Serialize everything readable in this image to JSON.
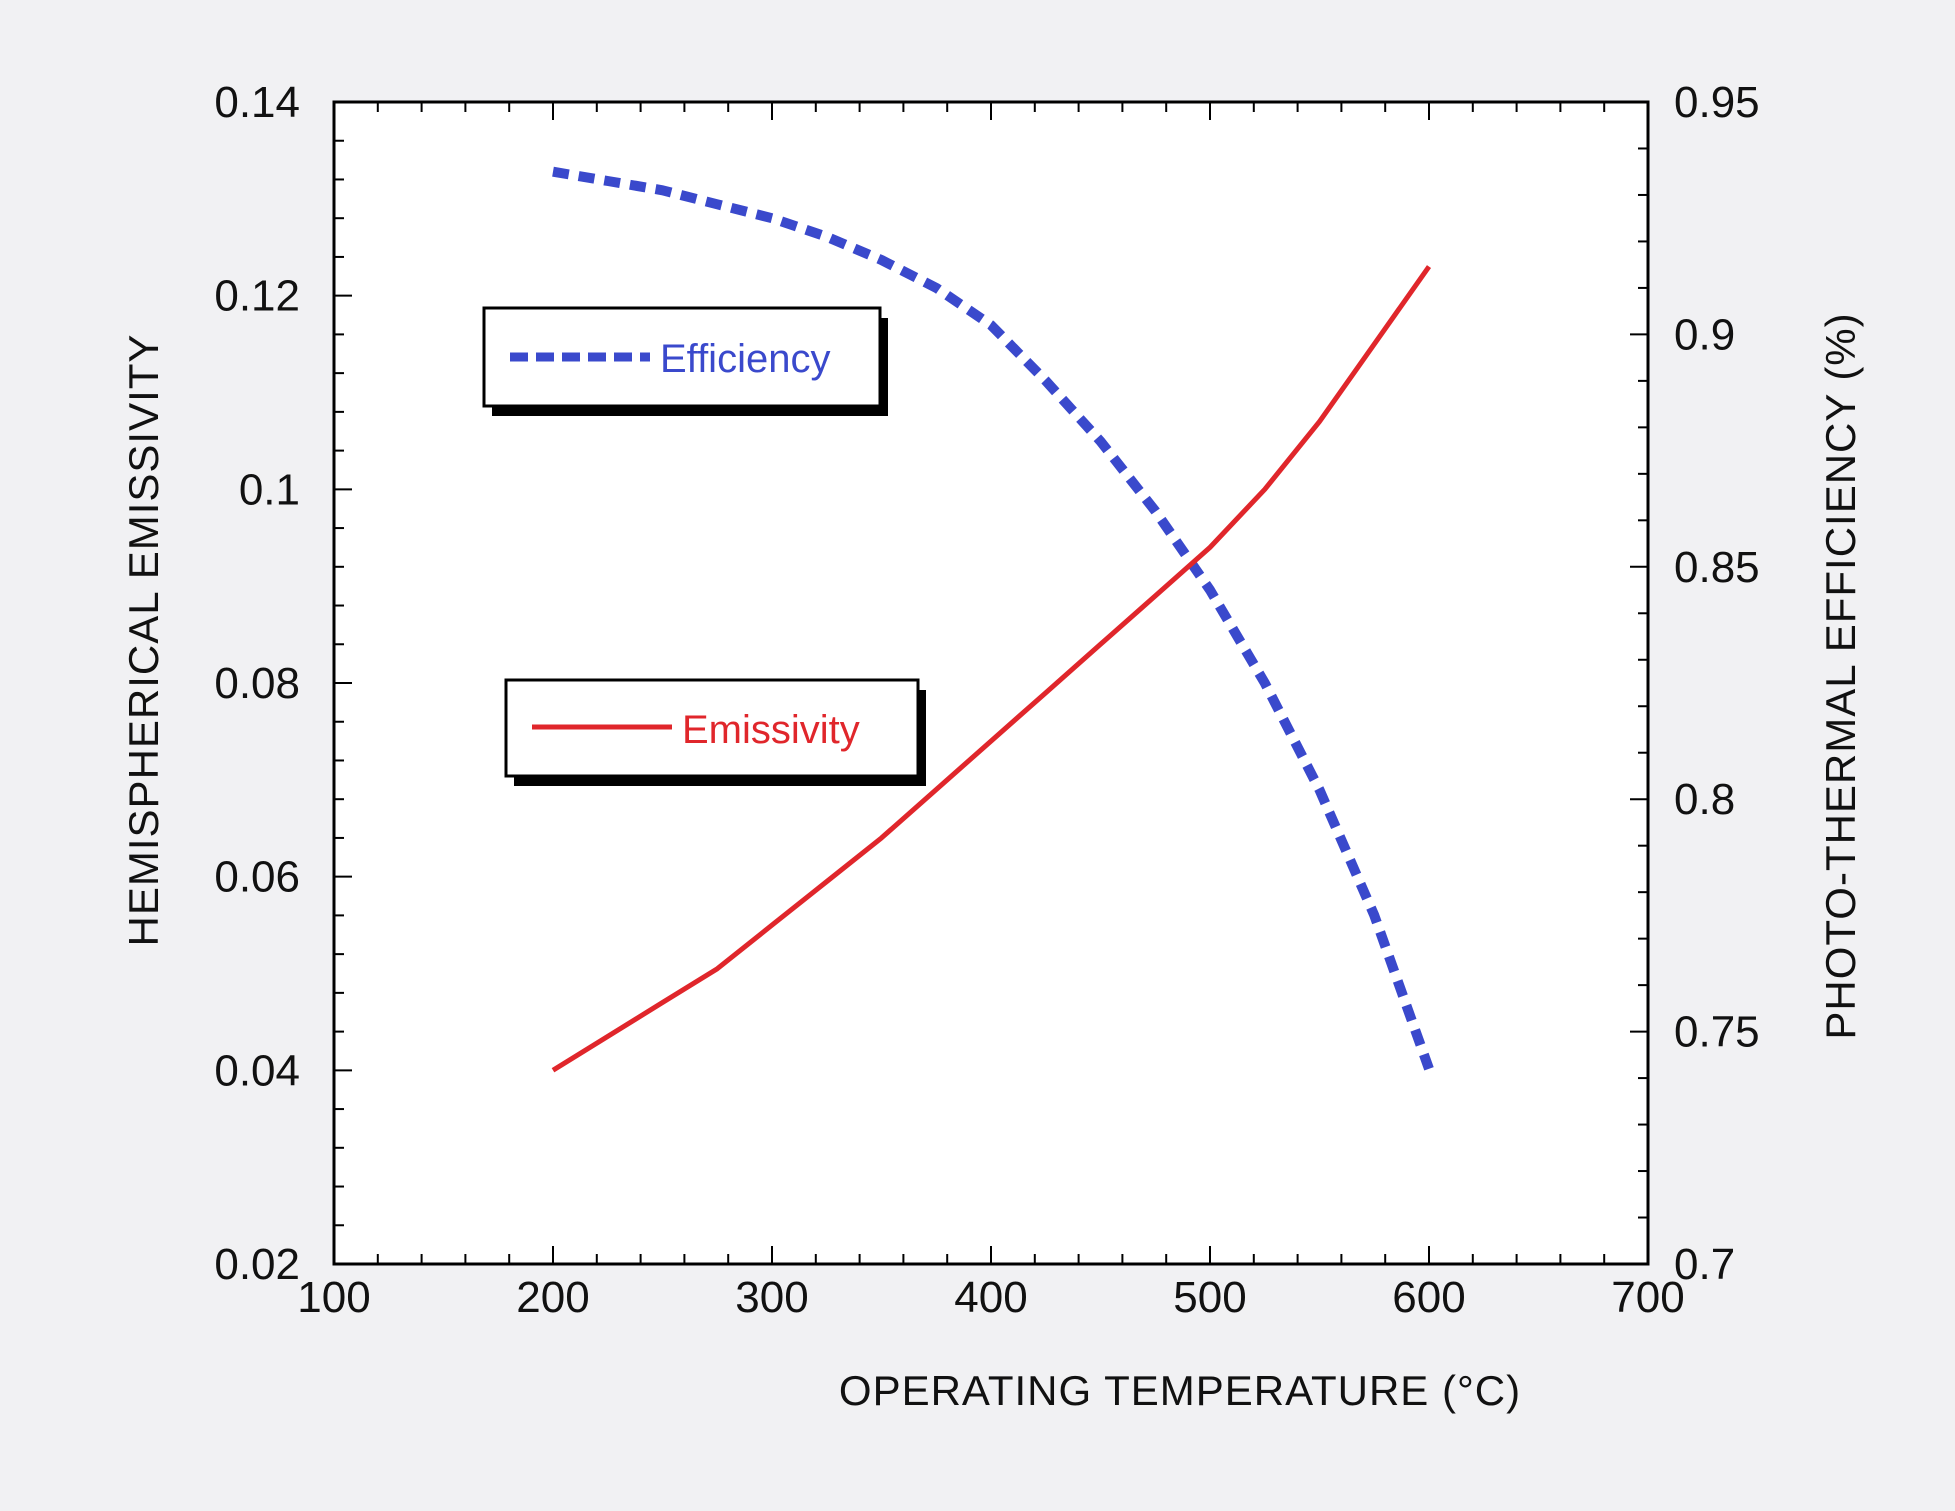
{
  "chart_data": {
    "type": "line",
    "title": "",
    "xlabel": "OPERATING TEMPERATURE  (°C)",
    "ylabel": "HEMISPHERICAL EMISSIVITY",
    "y2label": "PHOTO-THERMAL EFFICIENCY  (%)",
    "xlim": [
      100,
      700
    ],
    "ylim": [
      0.02,
      0.14
    ],
    "y2lim": [
      0.7,
      0.95
    ],
    "x_ticks": [
      "100",
      "200",
      "300",
      "400",
      "500",
      "600",
      "700"
    ],
    "y_ticks": [
      "0.02",
      "0.04",
      "0.06",
      "0.08",
      "0.1",
      "0.12",
      "0.14"
    ],
    "y2_ticks": [
      "0.7",
      "0.75",
      "0.8",
      "0.85",
      "0.9",
      "0.95"
    ],
    "grid": false,
    "series": [
      {
        "name": "Efficiency",
        "axis": "right",
        "color": "#3a49cc",
        "style": "dashed",
        "x": [
          200,
          225,
          250,
          275,
          300,
          325,
          350,
          375,
          400,
          425,
          450,
          475,
          500,
          525,
          550,
          575,
          600
        ],
        "y": [
          0.935,
          0.933,
          0.931,
          0.928,
          0.925,
          0.921,
          0.916,
          0.91,
          0.902,
          0.89,
          0.877,
          0.862,
          0.845,
          0.825,
          0.802,
          0.775,
          0.742
        ]
      },
      {
        "name": "Emissivity",
        "axis": "left",
        "color": "#e0262b",
        "style": "solid",
        "x": [
          200,
          225,
          250,
          275,
          300,
          325,
          350,
          375,
          400,
          425,
          450,
          475,
          500,
          525,
          550,
          575,
          600
        ],
        "y": [
          0.04,
          0.0435,
          0.047,
          0.0505,
          0.055,
          0.0595,
          0.064,
          0.069,
          0.074,
          0.079,
          0.084,
          0.089,
          0.094,
          0.1,
          0.107,
          0.115,
          0.123
        ]
      }
    ],
    "legend": [
      {
        "label": "Efficiency",
        "color": "#3a49cc",
        "style": "dashed"
      },
      {
        "label": "Emissivity",
        "color": "#e0262b",
        "style": "solid"
      }
    ]
  }
}
